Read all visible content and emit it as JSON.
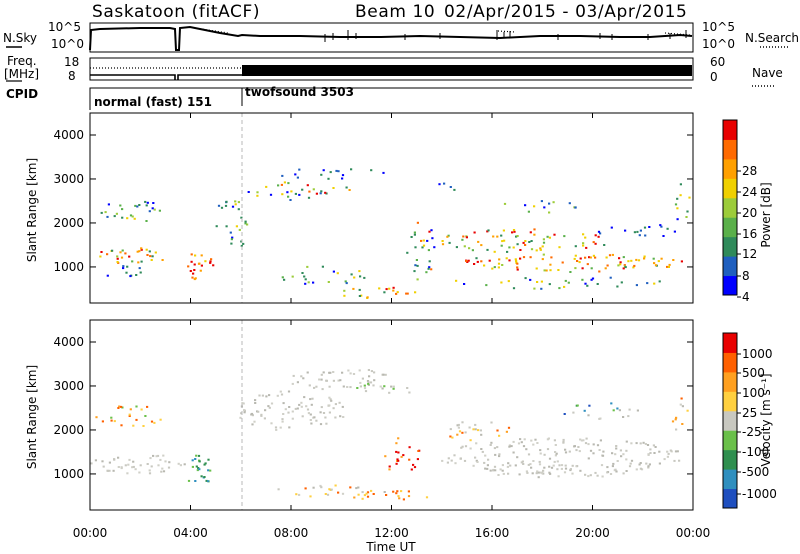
{
  "header": {
    "title": "Saskatoon (fitACF)",
    "beam_text": "Beam 10",
    "date_range": "02/Apr/2015 - 03/Apr/2015"
  },
  "nsky_panel": {
    "left_label": "N.Sky",
    "right_label": "N.Search",
    "left_ticks": [
      "10^5",
      "10^0"
    ],
    "right_ticks": [
      "10^5",
      "10^0"
    ]
  },
  "freq_panel": {
    "left_label_1": "Freq.",
    "left_label_2": "[MHz]",
    "left_ticks": [
      "18",
      "8"
    ],
    "right_ticks": [
      "60",
      "0"
    ],
    "right_label": "Nave"
  },
  "cpid": {
    "label": "CPID",
    "mode1": "normal (fast) 151",
    "mode2": "twofsound 3503"
  },
  "time_axis": {
    "label": "Time UT",
    "ticks": [
      "00:00",
      "04:00",
      "08:00",
      "12:00",
      "16:00",
      "20:00",
      "00:00"
    ]
  },
  "power_colorbar": {
    "label": "Power [dB]",
    "ticks": [
      "28",
      "24",
      "20",
      "16",
      "12",
      "8",
      "4"
    ],
    "colors": [
      "#0000ff",
      "#1f5fbf",
      "#2f8a5a",
      "#5ab04a",
      "#9ccc3a",
      "#f0d000",
      "#ffa000",
      "#ff6a00",
      "#e80000"
    ]
  },
  "velocity_colorbar": {
    "label": "Velocity [m s⁻¹]",
    "ticks": [
      "1000",
      "500",
      "100",
      "25",
      "-25",
      "-100",
      "-500",
      "-1000"
    ],
    "colors": [
      "#1f4fbf",
      "#2f8fbf",
      "#2f8f4f",
      "#6ac04a",
      "#c8c8c0",
      "#ffd040",
      "#ffa020",
      "#ff6000",
      "#e80000"
    ]
  },
  "chart_data": [
    {
      "type": "line",
      "name": "N.Sky / N.Search",
      "x": [
        "00:00",
        "04:00",
        "08:00",
        "12:00",
        "16:00",
        "20:00",
        "00:00"
      ],
      "ylim": [
        1,
        100000
      ],
      "log_scale": true
    },
    {
      "type": "line",
      "name": "Freq. / Nave",
      "x": [
        "00:00",
        "04:00",
        "08:00",
        "12:00",
        "16:00",
        "20:00",
        "00:00"
      ],
      "ylim": [
        8,
        18
      ]
    },
    {
      "type": "heatmap",
      "name": "Power",
      "xlabel": "Time UT",
      "ylabel": "Slant Range [km]",
      "xlim": [
        0,
        24
      ],
      "ylim": [
        180,
        4500
      ],
      "yticks": [
        1000,
        2000,
        3000,
        4000
      ],
      "colorbar_label": "Power [dB]",
      "colorbar_ticks": [
        4,
        8,
        12,
        16,
        20,
        24,
        28
      ]
    },
    {
      "type": "heatmap",
      "name": "Velocity",
      "xlabel": "Time UT",
      "ylabel": "Slant Range [km]",
      "xlim": [
        0,
        24
      ],
      "ylim": [
        180,
        4500
      ],
      "yticks": [
        1000,
        2000,
        3000,
        4000
      ],
      "colorbar_label": "Velocity [m s⁻¹]",
      "colorbar_ticks": [
        1000,
        500,
        100,
        25,
        -25,
        -100,
        -500,
        -1000
      ]
    }
  ]
}
